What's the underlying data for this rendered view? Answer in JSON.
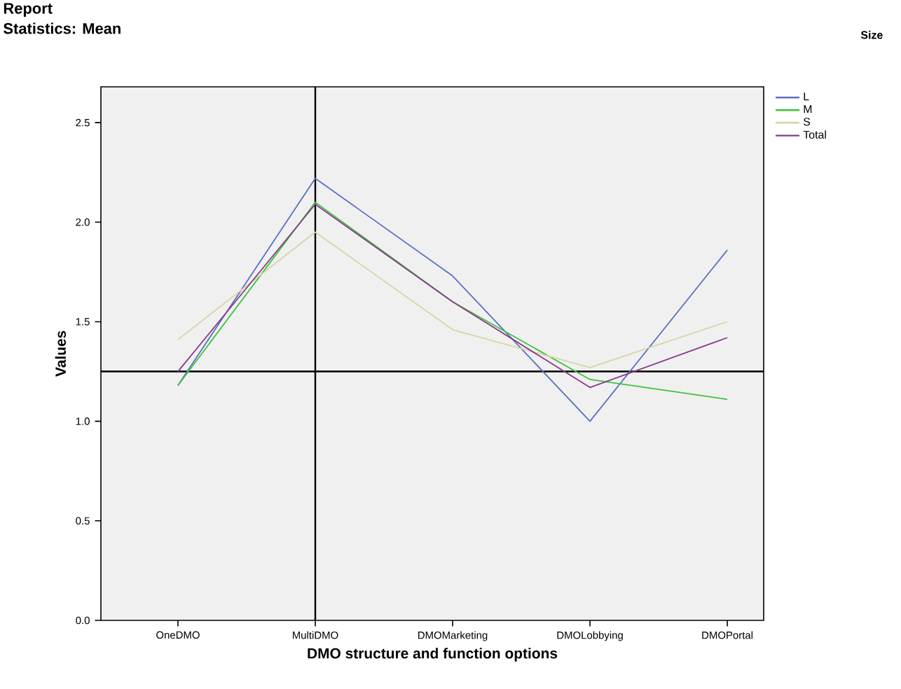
{
  "chart_data": {
    "type": "line",
    "title": "Report",
    "subtitle": "Statistics: Mean",
    "xlabel": "DMO structure and function options",
    "ylabel": "Values",
    "legend_title": "Size",
    "categories": [
      "OneDMO",
      "MultiDMO",
      "DMOMarketing",
      "DMOLobbying",
      "DMOPortal"
    ],
    "series": [
      {
        "name": "L",
        "color": "#5a70c2",
        "values": [
          1.18,
          2.22,
          1.73,
          1.0,
          1.86
        ]
      },
      {
        "name": "M",
        "color": "#3cc43c",
        "values": [
          1.18,
          2.1,
          1.6,
          1.21,
          1.11
        ]
      },
      {
        "name": "S",
        "color": "#d9d4a2",
        "values": [
          1.41,
          1.95,
          1.46,
          1.27,
          1.5
        ]
      },
      {
        "name": "Total",
        "color": "#8a3a8a",
        "values": [
          1.25,
          2.09,
          1.6,
          1.17,
          1.42
        ]
      }
    ],
    "ylim": [
      0,
      2.68
    ],
    "yticks": [
      {
        "value": 0,
        "label": "0.0"
      },
      {
        "value": 0.5,
        "label": "0.5"
      },
      {
        "value": 1,
        "label": "1.0"
      },
      {
        "value": 1.5,
        "label": "1.5"
      },
      {
        "value": 2,
        "label": "2.0"
      },
      {
        "value": 2.5,
        "label": "2.5"
      }
    ],
    "ref_lines": [
      {
        "axis": "y",
        "value": 1.25,
        "color": "#000000"
      },
      {
        "axis": "x",
        "value": "MultiDMO",
        "color": "#000000"
      }
    ],
    "grid": false,
    "legend": "top right",
    "marker": "none",
    "line_style": "solid"
  }
}
